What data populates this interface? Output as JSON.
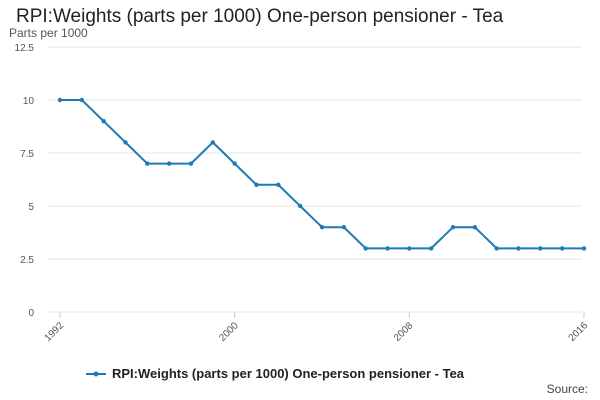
{
  "colors": {
    "series": "#1f7ab6",
    "grid": "#e6e6e6",
    "axis": "#cccccc"
  },
  "legend": {
    "label": "RPI:Weights (parts per 1000) One-person pensioner - Tea"
  },
  "source": {
    "label": "Source:"
  },
  "chart_data": {
    "type": "line",
    "title": "RPI:Weights (parts per 1000) One-person pensioner - Tea",
    "ylabel": "Parts per 1000",
    "xlabel": "",
    "ylim": [
      0,
      12.5
    ],
    "xlim": [
      1992,
      2016
    ],
    "yticks": [
      {
        "value": 0,
        "label": "0"
      },
      {
        "value": 2.5,
        "label": "2.5"
      },
      {
        "value": 5,
        "label": "5"
      },
      {
        "value": 7.5,
        "label": "7.5"
      },
      {
        "value": 10,
        "label": "10"
      },
      {
        "value": 12.5,
        "label": "12.5"
      }
    ],
    "xticks": [
      {
        "value": 1992,
        "label": "1992"
      },
      {
        "value": 2000,
        "label": "2000"
      },
      {
        "value": 2008,
        "label": "2008"
      },
      {
        "value": 2016,
        "label": "2016"
      }
    ],
    "series": [
      {
        "name": "RPI:Weights (parts per 1000) One-person pensioner - Tea",
        "x": [
          1992,
          1993,
          1994,
          1995,
          1996,
          1997,
          1998,
          1999,
          2000,
          2001,
          2002,
          2003,
          2004,
          2005,
          2006,
          2007,
          2008,
          2009,
          2010,
          2011,
          2012,
          2013,
          2014,
          2015,
          2016
        ],
        "values": [
          10,
          10,
          9,
          8,
          7,
          7,
          7,
          8,
          7,
          6,
          6,
          5,
          4,
          4,
          3,
          3,
          3,
          3,
          4,
          4,
          3,
          3,
          3,
          3,
          3
        ]
      }
    ],
    "grid": true,
    "legend_position": "bottom"
  }
}
